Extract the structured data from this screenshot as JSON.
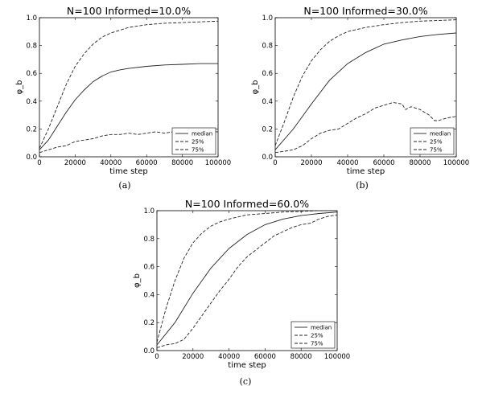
{
  "chart_data": [
    {
      "type": "line",
      "title": "N=100   Informed=10.0%",
      "xlabel": "time step",
      "ylabel": "φ_b",
      "xlim": [
        0,
        100000
      ],
      "ylim": [
        0,
        1.0
      ],
      "xticks": [
        "0",
        "20000",
        "40000",
        "60000",
        "80000",
        "100000"
      ],
      "yticks": [
        "0.0",
        "0.2",
        "0.4",
        "0.6",
        "0.8",
        "1.0"
      ],
      "legend": "lower-right",
      "caption": "(a)",
      "series": [
        {
          "name": "median",
          "style": "solid",
          "x": [
            0,
            5000,
            10000,
            15000,
            20000,
            25000,
            30000,
            35000,
            40000,
            45000,
            50000,
            60000,
            70000,
            80000,
            90000,
            100000
          ],
          "y": [
            0.05,
            0.12,
            0.22,
            0.32,
            0.41,
            0.48,
            0.54,
            0.58,
            0.61,
            0.625,
            0.635,
            0.65,
            0.66,
            0.665,
            0.67,
            0.67
          ]
        },
        {
          "name": "25%",
          "style": "dash",
          "x": [
            0,
            5000,
            10000,
            15000,
            20000,
            25000,
            30000,
            35000,
            40000,
            45000,
            50000,
            55000,
            60000,
            65000,
            70000,
            75000,
            80000,
            85000,
            90000,
            95000,
            100000
          ],
          "y": [
            0.03,
            0.05,
            0.07,
            0.08,
            0.11,
            0.12,
            0.13,
            0.15,
            0.16,
            0.16,
            0.17,
            0.16,
            0.17,
            0.18,
            0.17,
            0.18,
            0.18,
            0.17,
            0.18,
            0.18,
            0.18
          ]
        },
        {
          "name": "75%",
          "style": "dash",
          "x": [
            0,
            5000,
            10000,
            15000,
            20000,
            25000,
            30000,
            35000,
            40000,
            45000,
            50000,
            60000,
            70000,
            80000,
            90000,
            100000
          ],
          "y": [
            0.06,
            0.2,
            0.36,
            0.52,
            0.65,
            0.74,
            0.81,
            0.86,
            0.89,
            0.91,
            0.93,
            0.95,
            0.96,
            0.965,
            0.97,
            0.975
          ]
        }
      ]
    },
    {
      "type": "line",
      "title": "N=100   Informed=30.0%",
      "xlabel": "time step",
      "ylabel": "φ_b",
      "xlim": [
        0,
        100000
      ],
      "ylim": [
        0,
        1.0
      ],
      "xticks": [
        "0",
        "20000",
        "40000",
        "60000",
        "80000",
        "100000"
      ],
      "yticks": [
        "0.0",
        "0.2",
        "0.4",
        "0.6",
        "0.8",
        "1.0"
      ],
      "legend": "lower-right",
      "caption": "(b)",
      "series": [
        {
          "name": "median",
          "style": "solid",
          "x": [
            0,
            10000,
            20000,
            30000,
            40000,
            50000,
            60000,
            70000,
            80000,
            90000,
            100000
          ],
          "y": [
            0.05,
            0.2,
            0.38,
            0.55,
            0.67,
            0.75,
            0.81,
            0.84,
            0.865,
            0.88,
            0.89
          ]
        },
        {
          "name": "25%",
          "style": "dash",
          "x": [
            0,
            5000,
            10000,
            15000,
            20000,
            25000,
            30000,
            35000,
            40000,
            45000,
            50000,
            55000,
            60000,
            65000,
            70000,
            72000,
            75000,
            80000,
            85000,
            88000,
            90000,
            95000,
            100000
          ],
          "y": [
            0.03,
            0.04,
            0.05,
            0.08,
            0.13,
            0.17,
            0.19,
            0.2,
            0.24,
            0.28,
            0.31,
            0.35,
            0.37,
            0.39,
            0.38,
            0.34,
            0.36,
            0.34,
            0.3,
            0.26,
            0.26,
            0.28,
            0.29
          ]
        },
        {
          "name": "75%",
          "style": "dash",
          "x": [
            0,
            5000,
            10000,
            15000,
            20000,
            25000,
            30000,
            35000,
            40000,
            50000,
            60000,
            70000,
            80000,
            90000,
            100000
          ],
          "y": [
            0.08,
            0.25,
            0.43,
            0.58,
            0.69,
            0.77,
            0.83,
            0.87,
            0.9,
            0.93,
            0.95,
            0.965,
            0.975,
            0.98,
            0.985
          ]
        }
      ]
    },
    {
      "type": "line",
      "title": "N=100   Informed=60.0%",
      "xlabel": "time step",
      "ylabel": "φ_b",
      "xlim": [
        0,
        100000
      ],
      "ylim": [
        0,
        1.0
      ],
      "xticks": [
        "0",
        "20000",
        "40000",
        "60000",
        "80000",
        "100000"
      ],
      "yticks": [
        "0.0",
        "0.2",
        "0.4",
        "0.6",
        "0.8",
        "1.0"
      ],
      "legend": "lower-right",
      "caption": "(c)",
      "series": [
        {
          "name": "median",
          "style": "solid",
          "x": [
            0,
            10000,
            20000,
            30000,
            40000,
            50000,
            60000,
            70000,
            80000,
            90000,
            100000
          ],
          "y": [
            0.04,
            0.2,
            0.41,
            0.59,
            0.73,
            0.83,
            0.9,
            0.94,
            0.965,
            0.98,
            0.99
          ]
        },
        {
          "name": "25%",
          "style": "dash",
          "x": [
            0,
            5000,
            10000,
            15000,
            20000,
            25000,
            30000,
            35000,
            40000,
            45000,
            50000,
            55000,
            60000,
            65000,
            70000,
            75000,
            80000,
            85000,
            90000,
            95000,
            100000
          ],
          "y": [
            0.02,
            0.04,
            0.05,
            0.08,
            0.16,
            0.25,
            0.34,
            0.43,
            0.51,
            0.6,
            0.67,
            0.72,
            0.77,
            0.82,
            0.85,
            0.88,
            0.9,
            0.91,
            0.94,
            0.96,
            0.97
          ]
        },
        {
          "name": "75%",
          "style": "dash",
          "x": [
            0,
            5000,
            10000,
            15000,
            20000,
            25000,
            30000,
            35000,
            40000,
            50000,
            60000,
            70000,
            80000,
            90000,
            100000
          ],
          "y": [
            0.06,
            0.3,
            0.5,
            0.66,
            0.77,
            0.84,
            0.89,
            0.92,
            0.94,
            0.97,
            0.98,
            0.99,
            0.995,
            1.0,
            1.0
          ]
        }
      ]
    }
  ]
}
